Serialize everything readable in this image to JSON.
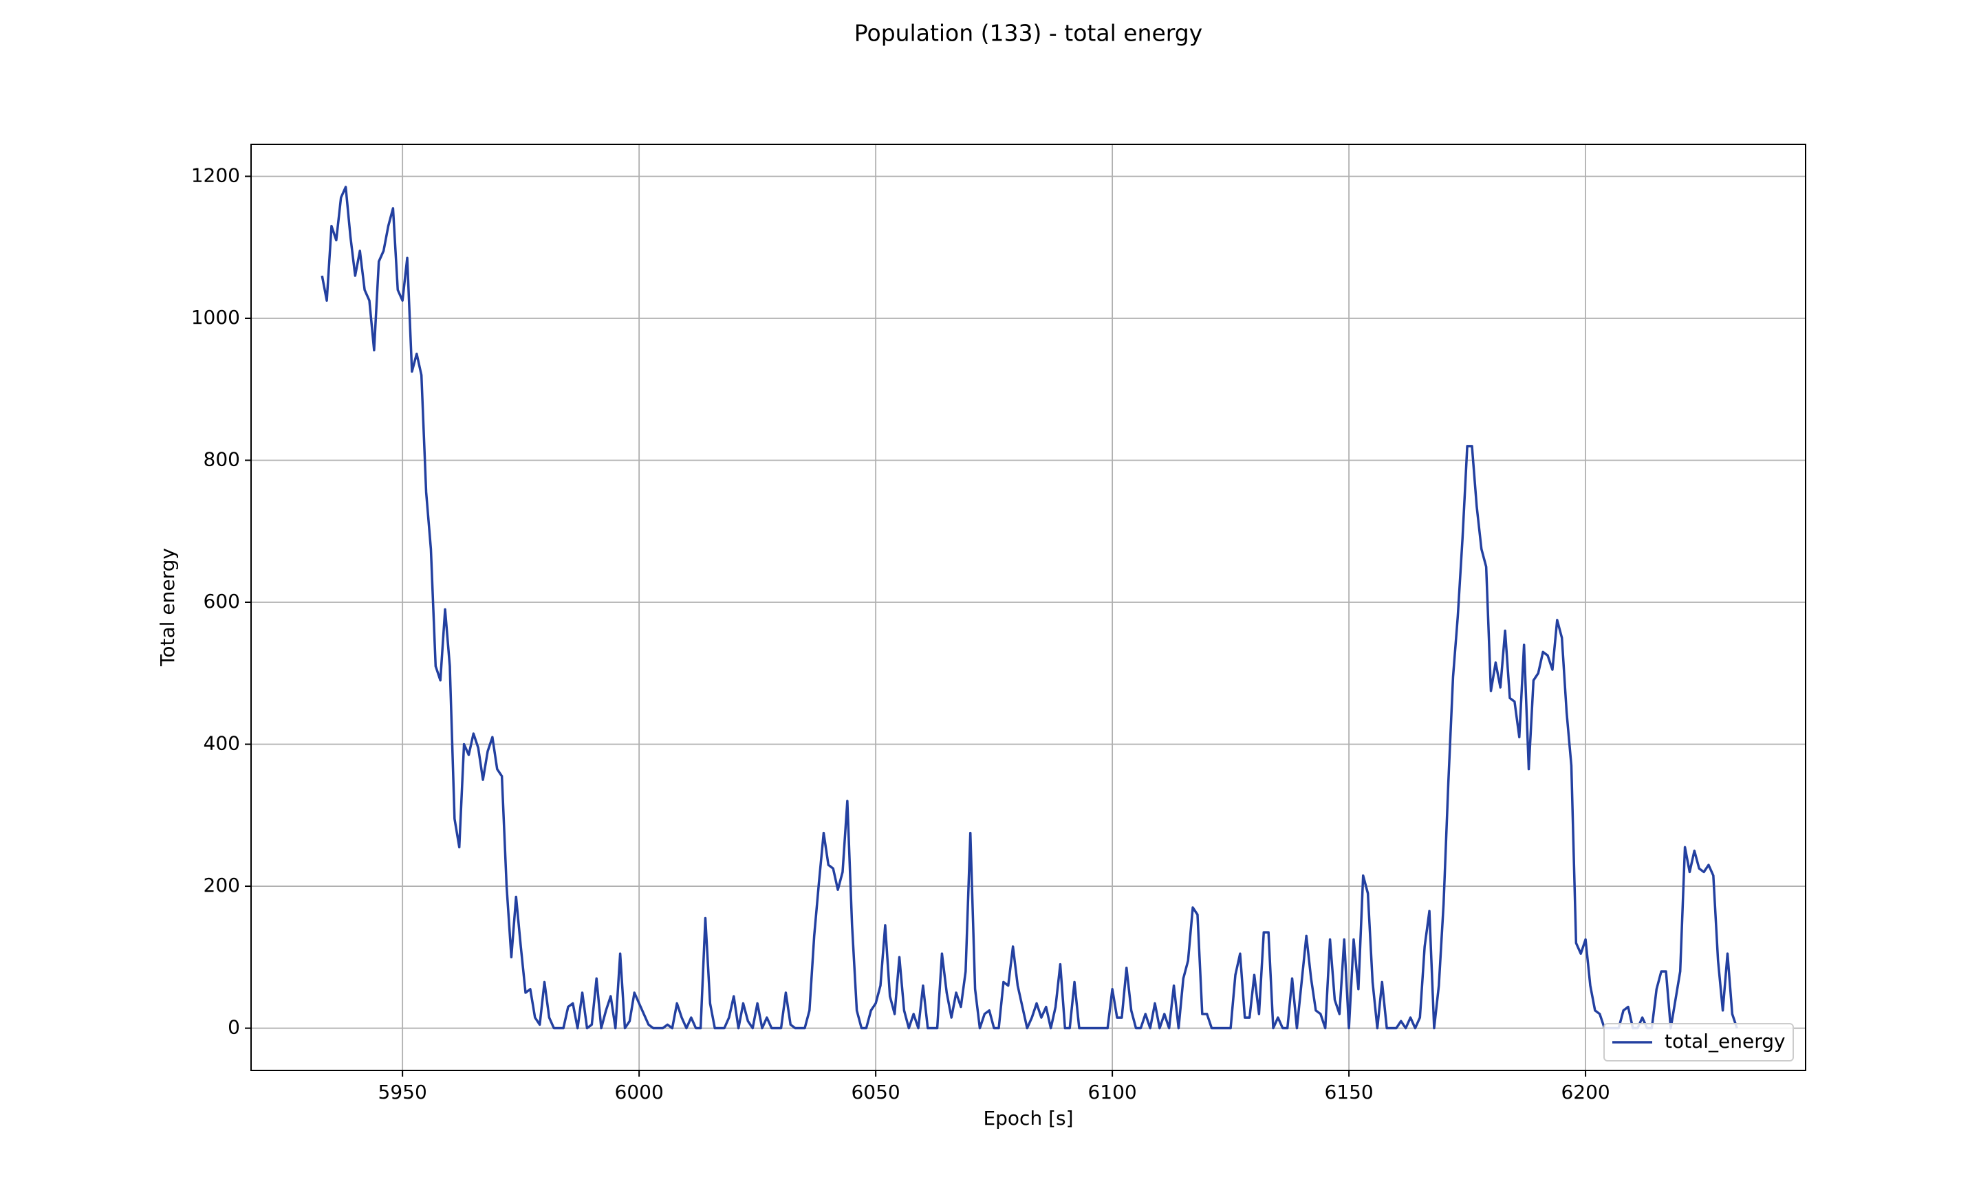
{
  "chart_data": {
    "type": "line",
    "title": "Population (133) - total energy",
    "xlabel": "Epoch [s]",
    "ylabel": "Total energy",
    "x": [
      5933,
      5934,
      5935,
      5936,
      5937,
      5938,
      5939,
      5940,
      5941,
      5942,
      5943,
      5944,
      5945,
      5946,
      5947,
      5948,
      5949,
      5950,
      5951,
      5952,
      5953,
      5954,
      5955,
      5956,
      5957,
      5958,
      5959,
      5960,
      5961,
      5962,
      5963,
      5964,
      5965,
      5966,
      5967,
      5968,
      5969,
      5970,
      5971,
      5972,
      5973,
      5974,
      5975,
      5976,
      5977,
      5978,
      5979,
      5980,
      5981,
      5982,
      5983,
      5984,
      5985,
      5986,
      5987,
      5988,
      5989,
      5990,
      5991,
      5992,
      5993,
      5994,
      5995,
      5996,
      5997,
      5998,
      5999,
      6000,
      6001,
      6002,
      6003,
      6004,
      6005,
      6006,
      6007,
      6008,
      6009,
      6010,
      6011,
      6012,
      6013,
      6014,
      6015,
      6016,
      6017,
      6018,
      6019,
      6020,
      6021,
      6022,
      6023,
      6024,
      6025,
      6026,
      6027,
      6028,
      6029,
      6030,
      6031,
      6032,
      6033,
      6034,
      6035,
      6036,
      6037,
      6038,
      6039,
      6040,
      6041,
      6042,
      6043,
      6044,
      6045,
      6046,
      6047,
      6048,
      6049,
      6050,
      6051,
      6052,
      6053,
      6054,
      6055,
      6056,
      6057,
      6058,
      6059,
      6060,
      6061,
      6062,
      6063,
      6064,
      6065,
      6066,
      6067,
      6068,
      6069,
      6070,
      6071,
      6072,
      6073,
      6074,
      6075,
      6076,
      6077,
      6078,
      6079,
      6080,
      6081,
      6082,
      6083,
      6084,
      6085,
      6086,
      6087,
      6088,
      6089,
      6090,
      6091,
      6092,
      6093,
      6094,
      6095,
      6096,
      6097,
      6098,
      6099,
      6100,
      6101,
      6102,
      6103,
      6104,
      6105,
      6106,
      6107,
      6108,
      6109,
      6110,
      6111,
      6112,
      6113,
      6114,
      6115,
      6116,
      6117,
      6118,
      6119,
      6120,
      6121,
      6122,
      6123,
      6124,
      6125,
      6126,
      6127,
      6128,
      6129,
      6130,
      6131,
      6132,
      6133,
      6134,
      6135,
      6136,
      6137,
      6138,
      6139,
      6140,
      6141,
      6142,
      6143,
      6144,
      6145,
      6146,
      6147,
      6148,
      6149,
      6150,
      6151,
      6152,
      6153,
      6154,
      6155,
      6156,
      6157,
      6158,
      6159,
      6160,
      6161,
      6162,
      6163,
      6164,
      6165,
      6166,
      6167,
      6168,
      6169,
      6170,
      6171,
      6172,
      6173,
      6174,
      6175,
      6176,
      6177,
      6178,
      6179,
      6180,
      6181,
      6182,
      6183,
      6184,
      6185,
      6186,
      6187,
      6188,
      6189,
      6190,
      6191,
      6192,
      6193,
      6194,
      6195,
      6196,
      6197,
      6198,
      6199,
      6200,
      6201,
      6202,
      6203,
      6204,
      6205,
      6206,
      6207,
      6208,
      6209,
      6210,
      6211,
      6212,
      6213,
      6214,
      6215,
      6216,
      6217,
      6218,
      6219,
      6220,
      6221,
      6222,
      6223,
      6224,
      6225,
      6226,
      6227,
      6228,
      6229,
      6230,
      6231,
      6232
    ],
    "series": [
      {
        "name": "total_energy",
        "color": "#2340a0",
        "values": [
          1060,
          1025,
          1130,
          1110,
          1170,
          1185,
          1115,
          1060,
          1095,
          1040,
          1025,
          955,
          1080,
          1095,
          1130,
          1155,
          1040,
          1025,
          1085,
          925,
          950,
          920,
          755,
          675,
          510,
          490,
          590,
          510,
          295,
          255,
          400,
          385,
          415,
          395,
          350,
          390,
          410,
          365,
          355,
          200,
          100,
          185,
          115,
          50,
          55,
          15,
          5,
          65,
          15,
          0,
          0,
          0,
          30,
          35,
          0,
          50,
          0,
          5,
          70,
          0,
          25,
          45,
          0,
          105,
          0,
          10,
          50,
          35,
          20,
          5,
          0,
          0,
          0,
          5,
          0,
          35,
          15,
          0,
          15,
          0,
          0,
          155,
          35,
          0,
          0,
          0,
          15,
          45,
          0,
          35,
          10,
          0,
          35,
          0,
          15,
          0,
          0,
          0,
          50,
          5,
          0,
          0,
          0,
          25,
          130,
          205,
          275,
          230,
          225,
          195,
          220,
          320,
          145,
          25,
          0,
          0,
          25,
          35,
          60,
          145,
          45,
          20,
          100,
          25,
          0,
          20,
          0,
          60,
          0,
          0,
          0,
          105,
          50,
          15,
          50,
          30,
          80,
          275,
          55,
          0,
          20,
          25,
          0,
          0,
          65,
          60,
          115,
          60,
          30,
          0,
          15,
          35,
          15,
          30,
          0,
          30,
          90,
          0,
          0,
          65,
          0,
          0,
          0,
          0,
          0,
          0,
          0,
          55,
          15,
          15,
          85,
          25,
          0,
          0,
          20,
          0,
          35,
          0,
          20,
          0,
          60,
          0,
          70,
          95,
          170,
          160,
          20,
          20,
          0,
          0,
          0,
          0,
          0,
          75,
          105,
          15,
          15,
          75,
          20,
          135,
          135,
          0,
          15,
          0,
          0,
          70,
          0,
          65,
          130,
          70,
          25,
          20,
          0,
          125,
          40,
          20,
          125,
          0,
          125,
          55,
          215,
          190,
          65,
          0,
          65,
          0,
          0,
          0,
          10,
          0,
          15,
          0,
          15,
          115,
          165,
          0,
          60,
          175,
          345,
          495,
          580,
          690,
          820,
          820,
          735,
          675,
          650,
          475,
          515,
          480,
          560,
          465,
          460,
          410,
          540,
          365,
          490,
          500,
          530,
          525,
          505,
          575,
          550,
          445,
          370,
          120,
          105,
          125,
          60,
          25,
          20,
          0,
          0,
          0,
          0,
          25,
          30,
          0,
          0,
          15,
          0,
          0,
          55,
          80,
          80,
          0,
          40,
          80,
          255,
          220,
          250,
          225,
          220,
          230,
          215,
          95,
          25,
          105,
          20,
          0
        ]
      }
    ],
    "xlim": [
      5918,
      6246.5
    ],
    "ylim": [
      -59.5,
      1245
    ],
    "xticks": [
      5950,
      6000,
      6050,
      6100,
      6150,
      6200
    ],
    "yticks": [
      0,
      200,
      400,
      600,
      800,
      1000,
      1200
    ],
    "grid": true,
    "legend": "lower right"
  }
}
